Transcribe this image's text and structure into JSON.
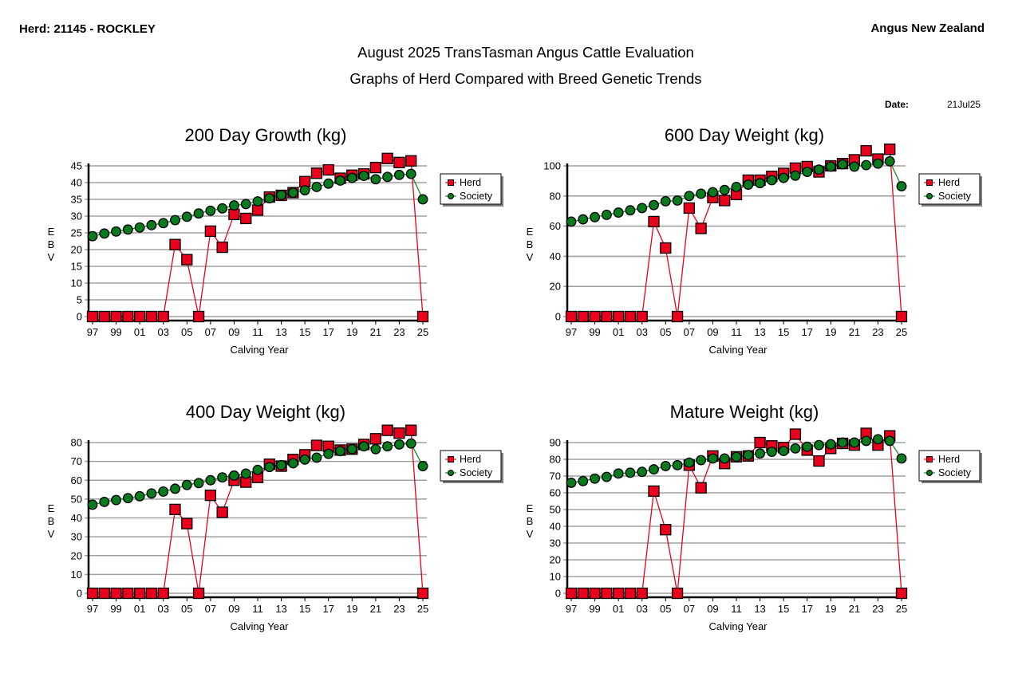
{
  "header": {
    "herd": "Herd: 21145 - ROCKLEY",
    "organisation": "Angus New Zealand",
    "title": "August 2025 TransTasman Angus Cattle Evaluation",
    "subtitle": "Graphs of Herd Compared with Breed Genetic Trends",
    "date_label": "Date:",
    "date_value": "21Jul25"
  },
  "colors": {
    "herd": "#e8001c",
    "society": "#0a7a1e",
    "herd_line": "#e8001c",
    "society_line": "#1a8a2a",
    "grid": "#a0a0a0"
  },
  "chart_data": [
    {
      "id": "growth200",
      "type": "line",
      "title": "200 Day Growth (kg)",
      "xlabel": "Calving Year",
      "ylabel": "EBV",
      "x": [
        "97",
        "98",
        "99",
        "00",
        "01",
        "02",
        "03",
        "04",
        "05",
        "06",
        "07",
        "08",
        "09",
        "10",
        "11",
        "12",
        "13",
        "14",
        "15",
        "16",
        "17",
        "18",
        "19",
        "20",
        "21",
        "22",
        "23",
        "24",
        "25"
      ],
      "x_tick_labels": [
        "97",
        "99",
        "01",
        "03",
        "05",
        "07",
        "09",
        "11",
        "13",
        "15",
        "17",
        "19",
        "21",
        "23",
        "25"
      ],
      "yticks": [
        0,
        5,
        10,
        15,
        20,
        25,
        30,
        35,
        40,
        45
      ],
      "ylim": [
        0,
        48
      ],
      "grid": true,
      "legend": "top-right",
      "series": [
        {
          "name": "Herd",
          "marker": "square",
          "values": [
            0,
            0,
            0,
            0,
            0,
            0,
            0,
            21.5,
            17,
            0,
            25.5,
            20.7,
            30.5,
            29.3,
            31.8,
            35.7,
            36.2,
            37,
            40.3,
            42.8,
            43.8,
            41.3,
            42.2,
            42.6,
            44.5,
            47.2,
            46,
            46.5,
            0
          ]
        },
        {
          "name": "Society",
          "marker": "circle",
          "values": [
            24,
            24.8,
            25.4,
            26,
            26.6,
            27.3,
            27.9,
            28.8,
            29.8,
            30.8,
            31.6,
            32.3,
            33.2,
            33.6,
            34.4,
            35.3,
            36.3,
            37,
            37.7,
            38.7,
            39.7,
            40.6,
            41.4,
            42,
            41,
            41.7,
            42.3,
            42.6,
            35
          ]
        }
      ]
    },
    {
      "id": "weight600",
      "type": "line",
      "title": "600 Day Weight (kg)",
      "xlabel": "Calving Year",
      "ylabel": "EBV",
      "x": [
        "97",
        "98",
        "99",
        "00",
        "01",
        "02",
        "03",
        "04",
        "05",
        "06",
        "07",
        "08",
        "09",
        "10",
        "11",
        "12",
        "13",
        "14",
        "15",
        "16",
        "17",
        "18",
        "19",
        "20",
        "21",
        "22",
        "23",
        "24",
        "25"
      ],
      "x_tick_labels": [
        "97",
        "99",
        "01",
        "03",
        "05",
        "07",
        "09",
        "11",
        "13",
        "15",
        "17",
        "19",
        "21",
        "23",
        "25"
      ],
      "yticks": [
        0,
        20,
        40,
        60,
        80,
        100
      ],
      "ylim": [
        0,
        115
      ],
      "grid": true,
      "legend": "top-right",
      "series": [
        {
          "name": "Herd",
          "marker": "square",
          "values": [
            0,
            0,
            0,
            0,
            0,
            0,
            0,
            63,
            45.5,
            0,
            72,
            58.5,
            79,
            77,
            81,
            90.5,
            90.5,
            93,
            95,
            98.5,
            99.5,
            96,
            100,
            101.5,
            104,
            110,
            104.5,
            111,
            0
          ]
        },
        {
          "name": "Society",
          "marker": "circle",
          "values": [
            63,
            64.5,
            66,
            67.5,
            69,
            70.5,
            72,
            74,
            76.5,
            77,
            80,
            81.5,
            82.5,
            84,
            86,
            87.5,
            88.5,
            90.5,
            92,
            93.5,
            96,
            97.5,
            99.5,
            101,
            99.5,
            100.5,
            101.5,
            103,
            86.5
          ]
        }
      ]
    },
    {
      "id": "weight400",
      "type": "line",
      "title": "400 Day Weight (kg)",
      "xlabel": "Calving Year",
      "ylabel": "EBV",
      "x": [
        "97",
        "98",
        "99",
        "00",
        "01",
        "02",
        "03",
        "04",
        "05",
        "06",
        "07",
        "08",
        "09",
        "10",
        "11",
        "12",
        "13",
        "14",
        "15",
        "16",
        "17",
        "18",
        "19",
        "20",
        "21",
        "22",
        "23",
        "24",
        "25"
      ],
      "x_tick_labels": [
        "97",
        "99",
        "01",
        "03",
        "05",
        "07",
        "09",
        "11",
        "13",
        "15",
        "17",
        "19",
        "21",
        "23",
        "25"
      ],
      "yticks": [
        0,
        10,
        20,
        30,
        40,
        50,
        60,
        70,
        80
      ],
      "ylim": [
        0,
        89
      ],
      "grid": true,
      "legend": "top-right",
      "series": [
        {
          "name": "Herd",
          "marker": "square",
          "values": [
            0,
            0,
            0,
            0,
            0,
            0,
            0,
            44.5,
            37,
            0,
            52,
            43,
            60,
            59,
            61.5,
            68.5,
            67.5,
            71,
            73.5,
            78.5,
            78,
            76,
            76.5,
            79,
            82,
            86.5,
            85,
            86.5,
            0
          ]
        },
        {
          "name": "Society",
          "marker": "circle",
          "values": [
            47,
            48.5,
            49.5,
            50.5,
            51.5,
            53,
            54,
            55.5,
            57.5,
            58.5,
            60,
            61.5,
            62.5,
            63.5,
            65.5,
            67,
            68,
            69,
            71,
            72,
            74,
            75.5,
            76.5,
            78,
            76.5,
            78,
            79,
            79.5,
            67.5
          ]
        }
      ]
    },
    {
      "id": "mature",
      "type": "line",
      "title": "Mature Weight (kg)",
      "xlabel": "Calving Year",
      "ylabel": "EBV",
      "x": [
        "97",
        "98",
        "99",
        "00",
        "01",
        "02",
        "03",
        "04",
        "05",
        "06",
        "07",
        "08",
        "09",
        "10",
        "11",
        "12",
        "13",
        "14",
        "15",
        "16",
        "17",
        "18",
        "19",
        "20",
        "21",
        "22",
        "23",
        "24",
        "25"
      ],
      "x_tick_labels": [
        "97",
        "99",
        "01",
        "03",
        "05",
        "07",
        "09",
        "11",
        "13",
        "15",
        "17",
        "19",
        "21",
        "23",
        "25"
      ],
      "yticks": [
        0,
        10,
        20,
        30,
        40,
        50,
        60,
        70,
        80,
        90
      ],
      "ylim": [
        0,
        98
      ],
      "grid": true,
      "legend": "top-right",
      "series": [
        {
          "name": "Herd",
          "marker": "square",
          "values": [
            0,
            0,
            0,
            0,
            0,
            0,
            0,
            61,
            38,
            0,
            76.5,
            63,
            82,
            77.5,
            81.5,
            82,
            90,
            88,
            87,
            95,
            85.5,
            79,
            86.5,
            89.5,
            88.5,
            95.5,
            88.5,
            94,
            0
          ]
        },
        {
          "name": "Society",
          "marker": "circle",
          "values": [
            66,
            67,
            68.5,
            69.5,
            71.5,
            72,
            72.5,
            74,
            76,
            76.5,
            78,
            79.5,
            80.5,
            80.5,
            81.5,
            82.5,
            83.5,
            84.5,
            85,
            86.5,
            87.5,
            88.5,
            89,
            90,
            90,
            91,
            92,
            91,
            80.5
          ]
        }
      ]
    }
  ]
}
